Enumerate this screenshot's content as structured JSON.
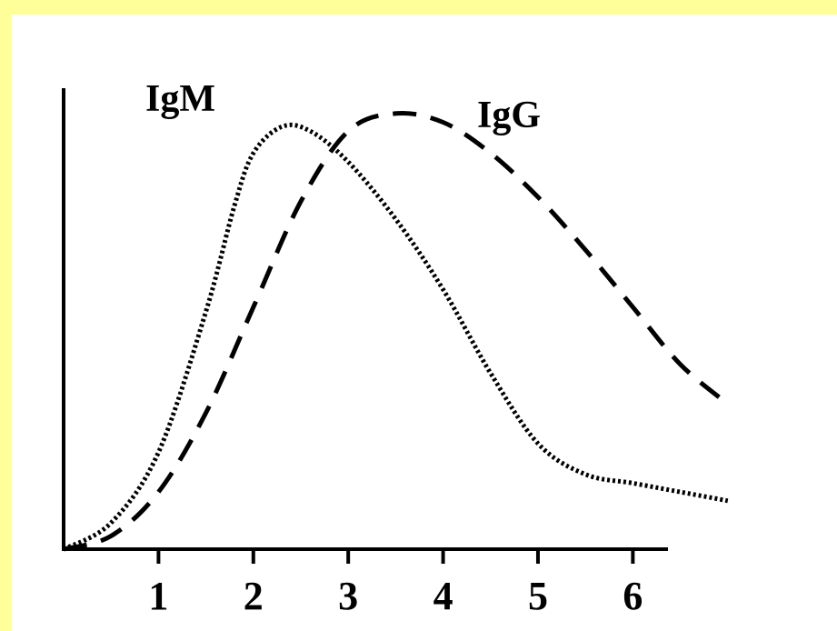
{
  "chart_data": {
    "type": "line",
    "title": "",
    "xlabel": "",
    "ylabel": "",
    "xlim": [
      0,
      7.0
    ],
    "ylim": [
      0,
      1.0
    ],
    "x_ticks": [
      1,
      2,
      3,
      4,
      5,
      6
    ],
    "x_tick_labels": [
      "1",
      "2",
      "3",
      "4",
      "5",
      "6"
    ],
    "grid": false,
    "series": [
      {
        "name": "IgM",
        "style": "dotted",
        "color": "#000000",
        "points": [
          [
            0,
            0.0
          ],
          [
            0.5,
            0.06
          ],
          [
            1.0,
            0.22
          ],
          [
            1.5,
            0.54
          ],
          [
            1.8,
            0.78
          ],
          [
            2.0,
            0.9
          ],
          [
            2.3,
            0.96
          ],
          [
            2.6,
            0.95
          ],
          [
            3.0,
            0.88
          ],
          [
            3.5,
            0.75
          ],
          [
            4.0,
            0.59
          ],
          [
            4.5,
            0.4
          ],
          [
            5.0,
            0.24
          ],
          [
            5.5,
            0.17
          ],
          [
            6.0,
            0.15
          ],
          [
            6.5,
            0.13
          ],
          [
            7.0,
            0.11
          ]
        ]
      },
      {
        "name": "IgG",
        "style": "dashed",
        "color": "#000000",
        "points": [
          [
            0,
            0.0
          ],
          [
            0.5,
            0.03
          ],
          [
            1.0,
            0.13
          ],
          [
            1.5,
            0.31
          ],
          [
            2.0,
            0.55
          ],
          [
            2.5,
            0.79
          ],
          [
            3.0,
            0.95
          ],
          [
            3.5,
            0.99
          ],
          [
            4.0,
            0.97
          ],
          [
            4.5,
            0.9
          ],
          [
            5.0,
            0.8
          ],
          [
            5.5,
            0.68
          ],
          [
            6.0,
            0.55
          ],
          [
            6.5,
            0.42
          ],
          [
            7.0,
            0.33
          ]
        ]
      }
    ]
  },
  "colors": {
    "background": "#ffff99",
    "plot_background": "#ffffff",
    "ink": "#000000"
  }
}
